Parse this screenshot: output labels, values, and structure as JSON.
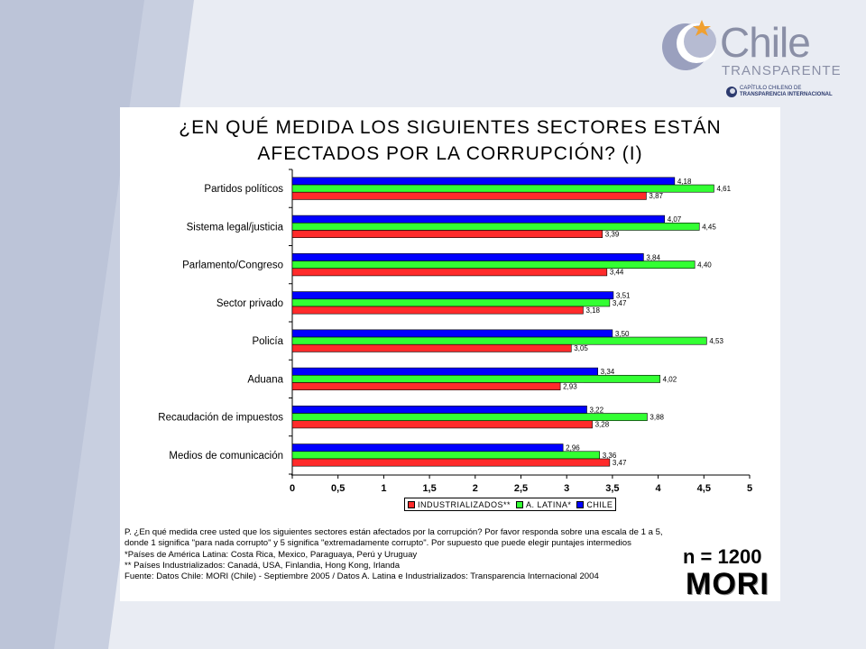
{
  "logo": {
    "name": "Chile",
    "tagline": "TRANSPARENTE",
    "ti_line1": "CAPÍTULO CHILENO DE",
    "ti_line2": "TRANSPARENCIA INTERNACIONAL"
  },
  "colors": {
    "chile": "#0000ff",
    "latina": "#33ff33",
    "industrializados": "#ff2b2b"
  },
  "chart_data": {
    "type": "bar",
    "orientation": "horizontal",
    "title_line1": "¿EN QUÉ MEDIDA LOS SIGUIENTES SECTORES ESTÁN",
    "title_line2": "AFECTADOS POR LA CORRUPCIÓN? (I)",
    "categories": [
      "Partidos políticos",
      "Sistema legal/justicia",
      "Parlamento/Congreso",
      "Sector privado",
      "Policía",
      "Aduana",
      "Recaudación de impuestos",
      "Medios de comunicación"
    ],
    "series": [
      {
        "name": "CHILE",
        "values": [
          4.18,
          4.07,
          3.84,
          3.51,
          3.5,
          3.34,
          3.22,
          2.96
        ],
        "labels": [
          "4,18",
          "4,07",
          "3,84",
          "3,51",
          "3,50",
          "3,34",
          "3,22",
          "2,96"
        ]
      },
      {
        "name": "A. LATINA*",
        "values": [
          4.61,
          4.45,
          4.4,
          3.47,
          4.53,
          4.02,
          3.88,
          3.36
        ],
        "labels": [
          "4,61",
          "4,45",
          "4,40",
          "3,47",
          "4,53",
          "4,02",
          "3,88",
          "3,36"
        ]
      },
      {
        "name": "INDUSTRIALIZADOS**",
        "values": [
          3.87,
          3.39,
          3.44,
          3.18,
          3.05,
          2.93,
          3.28,
          3.47
        ],
        "labels": [
          "3,87",
          "3,39",
          "3,44",
          "3,18",
          "3,05",
          "2,93",
          "3,28",
          "3,47"
        ]
      }
    ],
    "xlim": [
      0,
      5
    ],
    "xticks": [
      "0",
      "0,5",
      "1",
      "1,5",
      "2",
      "2,5",
      "3",
      "3,5",
      "4",
      "4,5",
      "5"
    ],
    "legend": [
      "INDUSTRIALIZADOS**",
      "A. LATINA*",
      "CHILE"
    ],
    "legend_position": "bottom"
  },
  "footnotes": {
    "question": "P. ¿En qué medida cree usted que los siguientes sectores están afectados por la corrupción? Por favor responda sobre una escala de 1 a 5, donde 1 significa \"para nada corrupto\" y 5 significa \"extremadamente corrupto\". Por supuesto que puede elegir puntajes intermedios",
    "note1": "*Países de América Latina: Costa Rica, Mexico, Paraguaya, Perú y Uruguay",
    "note2": "** Países Industrializados: Canadá, USA, Finlandia, Hong Kong, Irlanda",
    "source": "Fuente: Datos Chile: MORI (Chile) - Septiembre 2005 / Datos A. Latina e Industrializados: Transparencia Internacional 2004"
  },
  "sample": "n = 1200",
  "brand": "MORI"
}
